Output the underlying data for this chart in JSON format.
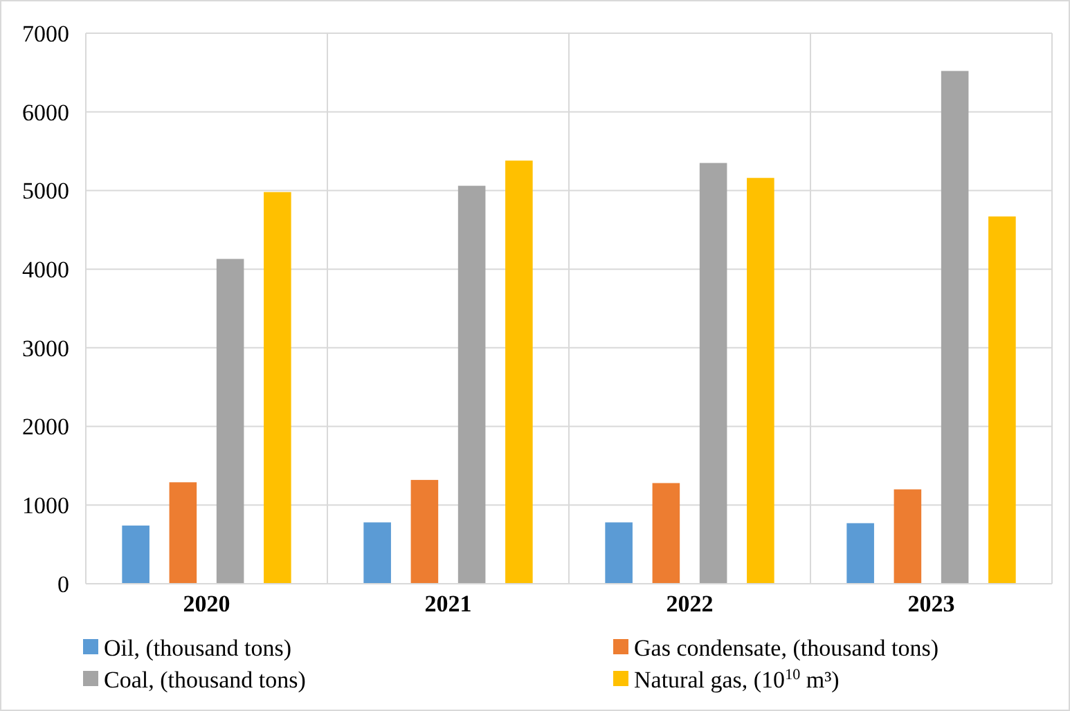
{
  "chart_data": {
    "type": "bar",
    "categories": [
      "2020",
      "2021",
      "2022",
      "2023"
    ],
    "series": [
      {
        "name": "Oil, (thousand tons)",
        "color": "#5b9bd5",
        "values": [
          740,
          780,
          780,
          770
        ]
      },
      {
        "name": "Gas condensate, (thousand tons)",
        "color": "#ed7d31",
        "values": [
          1290,
          1320,
          1280,
          1200
        ]
      },
      {
        "name": "Coal, (thousand tons)",
        "color": "#a5a5a5",
        "values": [
          4130,
          5060,
          5350,
          6520
        ]
      },
      {
        "name": "Natural gas, (10$^{10}$ m³)",
        "color": "#ffc000",
        "values": [
          4980,
          5380,
          5160,
          4670
        ]
      }
    ],
    "ylim": [
      0,
      7000
    ],
    "yticks": [
      0,
      1000,
      2000,
      3000,
      4000,
      5000,
      6000,
      7000
    ],
    "grid": true,
    "legend": "bottom"
  }
}
